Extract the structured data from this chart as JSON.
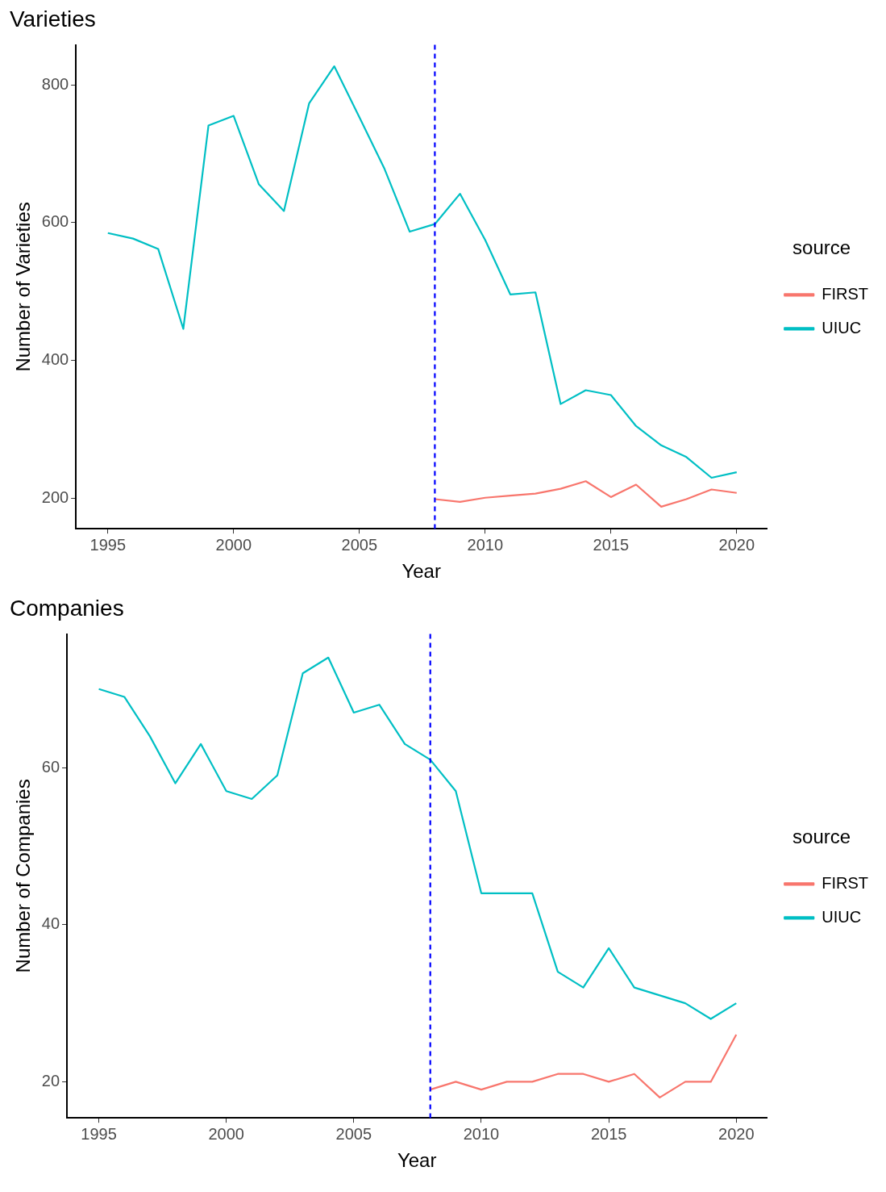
{
  "chart_data": [
    {
      "type": "line",
      "title": "Varieties",
      "xlabel": "Year",
      "ylabel": "Number of Varieties",
      "legend_title": "source",
      "legend": "right",
      "grid": false,
      "marker": "none",
      "line_style": "solid",
      "xlim": [
        1993.73,
        2021.2
      ],
      "xticks": [
        1995,
        2000,
        2005,
        2010,
        2015,
        2020
      ],
      "ylim": [
        156,
        858
      ],
      "yticks": [
        200,
        400,
        600,
        800
      ],
      "ref_lines": [
        {
          "axis": "x",
          "value": 2008,
          "color": "#0000ff",
          "line_style": "dashed"
        }
      ],
      "series": [
        {
          "name": "FIRST",
          "color": "#f8766d",
          "x": [
            2008,
            2009,
            2010,
            2011,
            2012,
            2013,
            2014,
            2015,
            2016,
            2017,
            2018,
            2019,
            2020
          ],
          "values": [
            199,
            195,
            201,
            204,
            207,
            214,
            225,
            202,
            220,
            188,
            199,
            213,
            208
          ]
        },
        {
          "name": "UIUC",
          "color": "#00bfc4",
          "x": [
            1995,
            1996,
            1997,
            1998,
            1999,
            2000,
            2001,
            2002,
            2003,
            2004,
            2005,
            2006,
            2007,
            2008,
            2009,
            2010,
            2011,
            2012,
            2013,
            2014,
            2015,
            2016,
            2017,
            2018,
            2019,
            2020
          ],
          "values": [
            585,
            577,
            562,
            446,
            741,
            755,
            656,
            617,
            773,
            827,
            753,
            678,
            587,
            598,
            642,
            575,
            496,
            499,
            337,
            357,
            350,
            305,
            277,
            260,
            230,
            238
          ]
        }
      ]
    },
    {
      "type": "line",
      "title": "Companies",
      "xlabel": "Year",
      "ylabel": "Number of Companies",
      "legend_title": "source",
      "legend": "right",
      "grid": false,
      "marker": "none",
      "line_style": "solid",
      "xlim": [
        1993.75,
        2021.2
      ],
      "xticks": [
        1995,
        2000,
        2005,
        2010,
        2015,
        2020
      ],
      "ylim": [
        15.4,
        77
      ],
      "yticks": [
        20,
        40,
        60
      ],
      "ref_lines": [
        {
          "axis": "x",
          "value": 2008,
          "color": "#0000ff",
          "line_style": "dashed"
        }
      ],
      "series": [
        {
          "name": "FIRST",
          "color": "#f8766d",
          "x": [
            2008,
            2009,
            2010,
            2011,
            2012,
            2013,
            2014,
            2015,
            2016,
            2017,
            2018,
            2019,
            2020
          ],
          "values": [
            19,
            20,
            19,
            20,
            20,
            21,
            21,
            20,
            21,
            18,
            20,
            20,
            26
          ]
        },
        {
          "name": "UIUC",
          "color": "#00bfc4",
          "x": [
            1995,
            1996,
            1997,
            1998,
            1999,
            2000,
            2001,
            2002,
            2003,
            2004,
            2005,
            2006,
            2007,
            2008,
            2009,
            2010,
            2011,
            2012,
            2013,
            2014,
            2015,
            2016,
            2017,
            2018,
            2019,
            2020
          ],
          "values": [
            70,
            69,
            64,
            58,
            63,
            57,
            56,
            59,
            72,
            74,
            67,
            68,
            63,
            61,
            57,
            44,
            44,
            44,
            34,
            32,
            37,
            32,
            31,
            30,
            28,
            30
          ]
        }
      ]
    }
  ]
}
